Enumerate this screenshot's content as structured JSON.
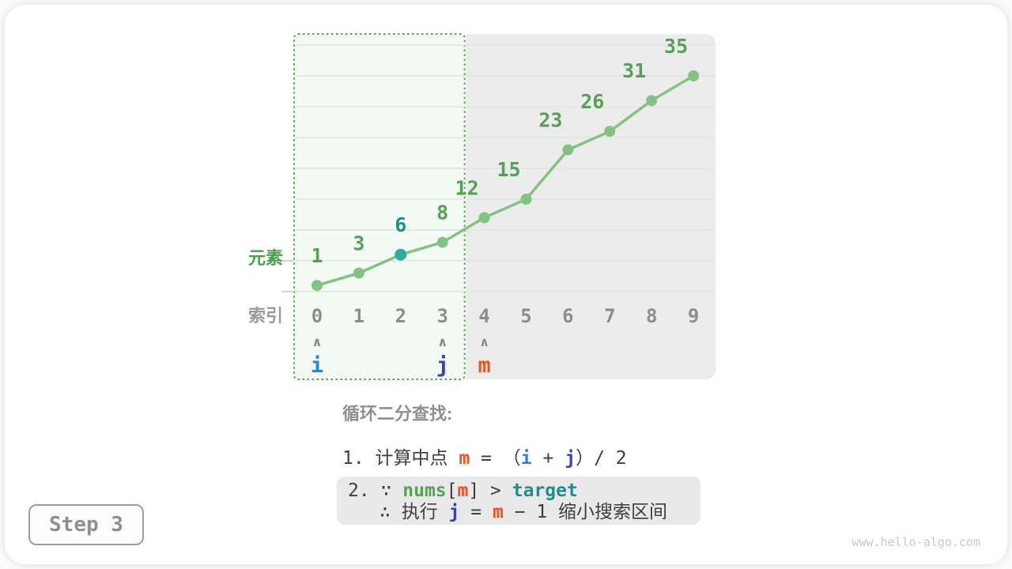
{
  "page": {
    "step_label": "Step 3",
    "watermark": "www.hello-algo.com"
  },
  "colors": {
    "line_green": "#84c284",
    "label_green": "#55a155",
    "teal_point": "#2fa9a2",
    "teal_text": "#1f8e8e",
    "pointer_i": "#2e86d1",
    "pointer_j": "#3a41c6",
    "pointer_m": "#f0511f",
    "axis_green": "#4ba04b",
    "axis_gray": "#9a9a9a",
    "index_gray": "#8d8d8d",
    "caret_gray": "#8a8a8a",
    "region_green_fill": "#f3f9f3",
    "region_green_border": "#57a057",
    "region_gray_fill": "#ececec",
    "grid": "#e0e4e0",
    "tick": "#d2d2d2",
    "text_dark": "#3e3e3e",
    "heading_gray": "#8f8f8f",
    "highlight_bg": "#e9e9e9",
    "nums_green": "#55a155",
    "target_teal": "#1f8e8e",
    "step_text": "#8f8f8f",
    "step_border": "#9e9e9e",
    "watermark": "#c9c9c9"
  },
  "chart_data": {
    "type": "line",
    "title": "",
    "xlabel": "索引",
    "ylabel": "元素",
    "x": [
      0,
      1,
      2,
      3,
      4,
      5,
      6,
      7,
      8,
      9
    ],
    "values": [
      1,
      3,
      6,
      8,
      12,
      15,
      23,
      26,
      31,
      35
    ],
    "ylim": [
      0,
      40
    ],
    "grid": true,
    "grid_step": 5,
    "highlight_point_index": 2,
    "search_window": {
      "from_index": 0,
      "to_index": 3,
      "style": "green-dashed"
    },
    "excluded_window": {
      "from_index": 4,
      "to_index": 9,
      "style": "gray"
    },
    "pointers": [
      {
        "name": "i",
        "index": 0
      },
      {
        "name": "j",
        "index": 3
      },
      {
        "name": "m",
        "index": 4
      }
    ],
    "caret_glyph": "∧"
  },
  "caption": {
    "heading": "循环二分查找:",
    "step1_tokens": [
      {
        "t": "1. 计算中点 ",
        "c": "text",
        "n": "step1-prefix"
      },
      {
        "t": "m",
        "c": "m",
        "n": "var-m"
      },
      {
        "t": " = （",
        "c": "text",
        "n": "equals-open-paren"
      },
      {
        "t": "i",
        "c": "i",
        "n": "var-i"
      },
      {
        "t": " + ",
        "c": "text",
        "n": "plus"
      },
      {
        "t": "j",
        "c": "j",
        "n": "var-j"
      },
      {
        "t": "）/ 2",
        "c": "text",
        "n": "close-paren-div-2"
      }
    ],
    "step2_condition_tokens": [
      {
        "t": "2. ∵ ",
        "c": "text",
        "n": "step2-because"
      },
      {
        "t": "nums",
        "c": "nums",
        "n": "var-nums"
      },
      {
        "t": "[",
        "c": "text",
        "n": "bracket-open"
      },
      {
        "t": "m",
        "c": "m",
        "n": "var-m"
      },
      {
        "t": "] > ",
        "c": "text",
        "n": "bracket-close-gt"
      },
      {
        "t": "target",
        "c": "target",
        "n": "var-target"
      }
    ],
    "step2_action_tokens": [
      {
        "t": "∴ 执行 ",
        "c": "text",
        "n": "therefore-execute"
      },
      {
        "t": "j",
        "c": "j",
        "n": "var-j"
      },
      {
        "t": " = ",
        "c": "text",
        "n": "equals"
      },
      {
        "t": "m",
        "c": "m",
        "n": "var-m"
      },
      {
        "t": " − 1 缩小搜索区间",
        "c": "text",
        "n": "minus-1-shrink-range"
      }
    ]
  }
}
